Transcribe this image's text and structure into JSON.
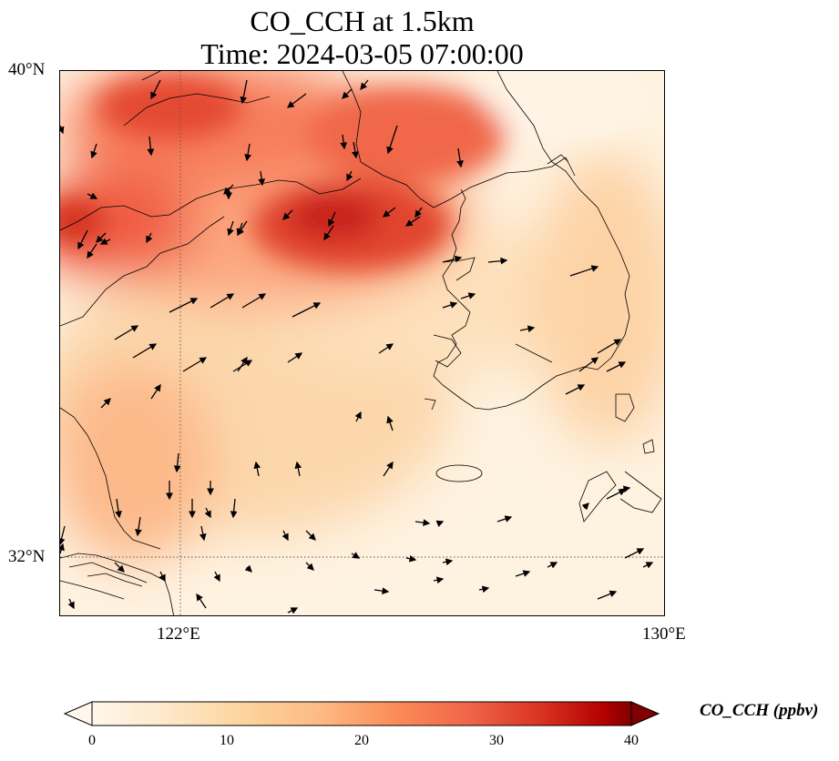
{
  "title": {
    "line1": "CO_CCH at 1.5km",
    "line2": "Time: 2024-03-05 07:00:00"
  },
  "map": {
    "lat_labels": [
      "40°N",
      "32°N"
    ],
    "lon_labels": [
      "122°E",
      "130°E"
    ],
    "lat_range": [
      31,
      40
    ],
    "lon_range": [
      120,
      130
    ],
    "gridlines": "dotted",
    "field": "CO_CCH",
    "level": "1.5km",
    "wind_vectors": true
  },
  "colorbar": {
    "label": "CO_CCH (ppbv)",
    "ticks": [
      "0",
      "10",
      "20",
      "30",
      "40"
    ],
    "range": [
      0,
      40
    ],
    "extend": "both",
    "colormap": "OrRd",
    "colors": [
      "#fff7ec",
      "#fdd49e",
      "#fdbb84",
      "#fc8d59",
      "#ef6548",
      "#d7301f",
      "#b30000",
      "#7f0000"
    ]
  }
}
